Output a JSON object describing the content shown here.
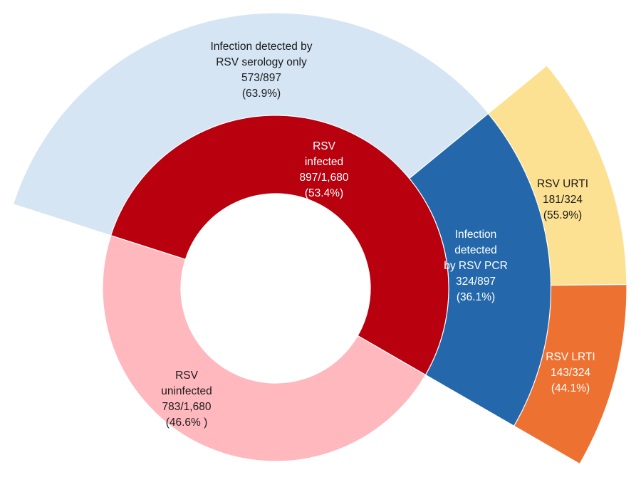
{
  "chart_data": {
    "type": "sunburst",
    "title": "",
    "rings": [
      {
        "level": "inner",
        "segments": [
          {
            "key": "infected",
            "lines": [
              "RSV",
              "infected",
              "897/1,680",
              "(53.4%)"
            ],
            "value": 897,
            "total": 1680,
            "percent": 53.4,
            "color": "#B8000E",
            "text_color": "#ffffff"
          },
          {
            "key": "uninfected",
            "lines": [
              "RSV",
              "uninfected",
              "783/1,680",
              "(46.6% )"
            ],
            "value": 783,
            "total": 1680,
            "percent": 46.6,
            "color": "#FFB9BE",
            "text_color": "#1a1a1a"
          }
        ]
      },
      {
        "level": "middle",
        "parent": "infected",
        "segments": [
          {
            "key": "serology",
            "lines": [
              "Infection detected by",
              "RSV serology only",
              "573/897",
              "(63.9%)"
            ],
            "value": 573,
            "total": 897,
            "percent": 63.9,
            "color": "#D5E5F4",
            "text_color": "#1a1a1a"
          },
          {
            "key": "pcr",
            "lines": [
              "Infection",
              "detected",
              "by RSV PCR",
              "324/897",
              "(36.1%)"
            ],
            "value": 324,
            "total": 897,
            "percent": 36.1,
            "color": "#2468AB",
            "text_color": "#ffffff"
          }
        ]
      },
      {
        "level": "outer",
        "parent": "pcr",
        "segments": [
          {
            "key": "urti",
            "lines": [
              "RSV URTI",
              "181/324",
              "(55.9%)"
            ],
            "value": 181,
            "total": 324,
            "percent": 55.9,
            "color": "#FDE192",
            "text_color": "#1a1a1a"
          },
          {
            "key": "lrti",
            "lines": [
              "RSV LRTI",
              "143/324",
              "(44.1%)"
            ],
            "value": 143,
            "total": 324,
            "percent": 44.1,
            "color": "#ED7131",
            "text_color": "#ffffff"
          }
        ]
      }
    ]
  }
}
